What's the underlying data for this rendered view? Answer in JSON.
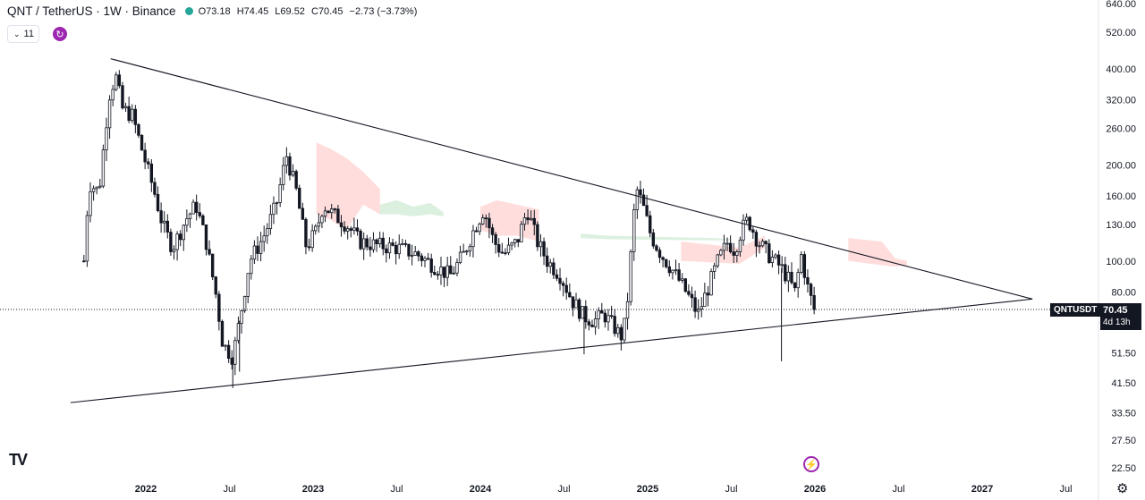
{
  "header": {
    "title": "QNT / TetherUS · 1W · Binance",
    "open": "O73.18",
    "high": "H74.45",
    "low": "L69.52",
    "close": "C70.45",
    "change": "−2.73 (−3.73%)",
    "indicator_count": "11",
    "status_color": "#26a69a"
  },
  "badges": {
    "symbol": "QNTUSDT",
    "last_price": "70.45",
    "countdown": "4d 13h"
  },
  "chart_data": {
    "type": "candlestick",
    "scale": "log",
    "ylim": [
      22.5,
      640
    ],
    "y_ticks": [
      "640.00",
      "520.00",
      "400.00",
      "320.00",
      "260.00",
      "200.00",
      "160.00",
      "130.00",
      "100.00",
      "80.00",
      "51.50",
      "41.50",
      "33.50",
      "27.50",
      "22.50"
    ],
    "x_ticks": [
      {
        "label": "2022",
        "t": 2022.0
      },
      {
        "label": "Jul",
        "t": 2022.5
      },
      {
        "label": "2023",
        "t": 2023.0
      },
      {
        "label": "Jul",
        "t": 2023.5
      },
      {
        "label": "2024",
        "t": 2024.0
      },
      {
        "label": "Jul",
        "t": 2024.5
      },
      {
        "label": "2025",
        "t": 2025.0
      },
      {
        "label": "Jul",
        "t": 2025.5
      },
      {
        "label": "2026",
        "t": 2026.0
      },
      {
        "label": "Jul",
        "t": 2026.5
      },
      {
        "label": "2027",
        "t": 2027.0
      },
      {
        "label": "Jul",
        "t": 2027.5
      }
    ],
    "price_path": [
      [
        2021.63,
        100
      ],
      [
        2021.66,
        175
      ],
      [
        2021.72,
        165
      ],
      [
        2021.78,
        330
      ],
      [
        2021.82,
        380
      ],
      [
        2021.86,
        300
      ],
      [
        2021.92,
        285
      ],
      [
        2021.98,
        220
      ],
      [
        2022.05,
        165
      ],
      [
        2022.1,
        130
      ],
      [
        2022.16,
        110
      ],
      [
        2022.24,
        135
      ],
      [
        2022.3,
        150
      ],
      [
        2022.36,
        115
      ],
      [
        2022.42,
        78
      ],
      [
        2022.46,
        55
      ],
      [
        2022.52,
        50
      ],
      [
        2022.56,
        65
      ],
      [
        2022.62,
        100
      ],
      [
        2022.7,
        118
      ],
      [
        2022.78,
        150
      ],
      [
        2022.84,
        215
      ],
      [
        2022.9,
        165
      ],
      [
        2022.96,
        110
      ],
      [
        2023.02,
        125
      ],
      [
        2023.06,
        150
      ],
      [
        2023.12,
        140
      ],
      [
        2023.2,
        130
      ],
      [
        2023.28,
        115
      ],
      [
        2023.38,
        112
      ],
      [
        2023.5,
        110
      ],
      [
        2023.62,
        105
      ],
      [
        2023.72,
        97
      ],
      [
        2023.82,
        90
      ],
      [
        2023.9,
        105
      ],
      [
        2023.96,
        125
      ],
      [
        2024.02,
        145
      ],
      [
        2024.08,
        115
      ],
      [
        2024.14,
        105
      ],
      [
        2024.22,
        115
      ],
      [
        2024.28,
        145
      ],
      [
        2024.34,
        115
      ],
      [
        2024.4,
        100
      ],
      [
        2024.48,
        90
      ],
      [
        2024.55,
        75
      ],
      [
        2024.62,
        67
      ],
      [
        2024.68,
        65
      ],
      [
        2024.74,
        68
      ],
      [
        2024.8,
        62
      ],
      [
        2024.84,
        58
      ],
      [
        2024.87,
        65
      ],
      [
        2024.9,
        105
      ],
      [
        2024.93,
        170
      ],
      [
        2024.97,
        150
      ],
      [
        2025.02,
        120
      ],
      [
        2025.08,
        105
      ],
      [
        2025.14,
        95
      ],
      [
        2025.2,
        85
      ],
      [
        2025.26,
        75
      ],
      [
        2025.3,
        68
      ],
      [
        2025.36,
        82
      ],
      [
        2025.42,
        100
      ],
      [
        2025.48,
        115
      ],
      [
        2025.52,
        108
      ],
      [
        2025.56,
        125
      ],
      [
        2025.6,
        135
      ],
      [
        2025.66,
        115
      ],
      [
        2025.72,
        105
      ],
      [
        2025.76,
        100
      ],
      [
        2025.8,
        95
      ],
      [
        2025.84,
        88
      ],
      [
        2025.88,
        80
      ],
      [
        2025.92,
        105
      ],
      [
        2025.95,
        85
      ],
      [
        2025.98,
        75
      ],
      [
        2026.0,
        70.45
      ]
    ],
    "lower_wicks": [
      [
        2022.52,
        40
      ],
      [
        2022.56,
        45
      ],
      [
        2025.8,
        48.5
      ],
      [
        2024.62,
        51
      ]
    ],
    "trendlines": [
      {
        "from": [
          2021.79,
          430
        ],
        "to": [
          2027.3,
          76
        ]
      },
      {
        "from": [
          2021.55,
          36
        ],
        "to": [
          2027.3,
          76
        ]
      }
    ],
    "current_price": 70.45,
    "cloud_bear": [
      [
        2023.02,
        235,
        140
      ],
      [
        2023.1,
        225,
        135
      ],
      [
        2023.2,
        210,
        125
      ],
      [
        2023.3,
        190,
        150
      ],
      [
        2023.4,
        168,
        140
      ],
      [
        2024.0,
        148,
        125
      ],
      [
        2024.1,
        155,
        120
      ],
      [
        2024.22,
        150,
        120
      ],
      [
        2024.35,
        145,
        115
      ],
      [
        2025.2,
        115,
        100
      ],
      [
        2025.55,
        110,
        98
      ],
      [
        2025.7,
        120,
        110
      ],
      [
        2026.2,
        118,
        100
      ],
      [
        2026.4,
        115,
        97
      ],
      [
        2026.48,
        102,
        96
      ],
      [
        2026.55,
        100,
        97
      ]
    ],
    "cloud_bull": [
      [
        2023.4,
        150,
        140
      ],
      [
        2023.5,
        155,
        140
      ],
      [
        2023.6,
        148,
        138
      ],
      [
        2023.7,
        152,
        140
      ],
      [
        2023.78,
        142,
        138
      ],
      [
        2024.6,
        122,
        118
      ],
      [
        2024.75,
        120,
        117
      ],
      [
        2025.4,
        118,
        116
      ],
      [
        2025.5,
        117,
        116
      ]
    ],
    "colors": {
      "up": "#26a69a",
      "down": "#ef5350",
      "candle": "#131722",
      "bear_cloud": "#ffd9d9",
      "bull_cloud": "#d8eedd",
      "trendline": "#131722"
    }
  }
}
